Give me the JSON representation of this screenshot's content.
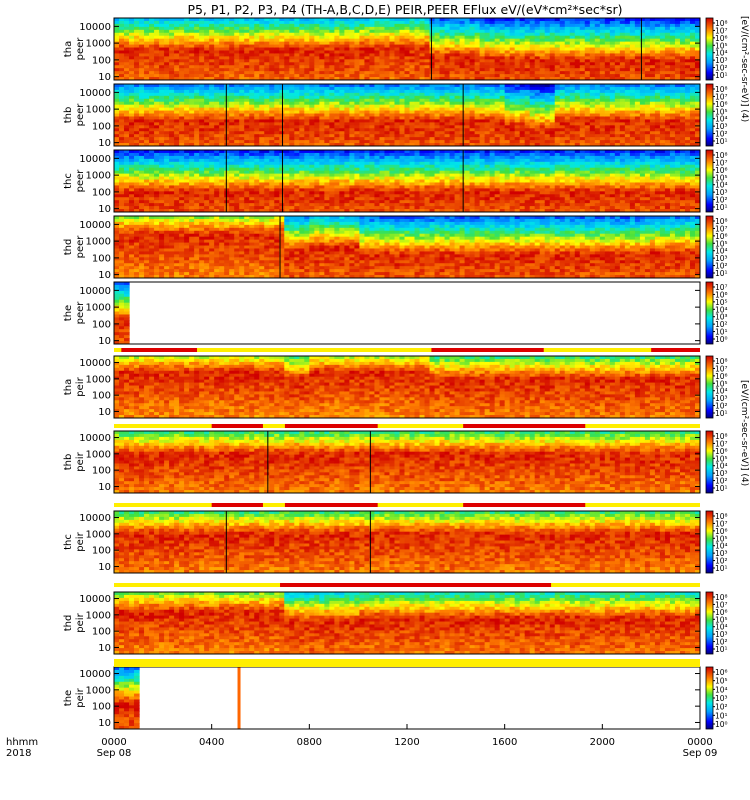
{
  "chart_data": {
    "type": "heatmap",
    "title": "P5, P1, P2, P3, P4 (TH-A,B,C,D,E) PEIR,PEER EFlux eV/(eV*cm²*sec*sr)",
    "colorbar_label_peer": "[eV/(cm²-sec-sr-eV)] (4)",
    "colorbar_label_peir": "[eV/(cm²-sec-sr-eV)] (4)",
    "x_axis": {
      "label_row1": "hhmm",
      "label_row2": "2018",
      "range_hours": [
        0,
        24
      ],
      "ticks": [
        {
          "hour": 0,
          "label": "0000",
          "sub": "Sep 08"
        },
        {
          "hour": 4,
          "label": "0400",
          "sub": ""
        },
        {
          "hour": 8,
          "label": "0800",
          "sub": ""
        },
        {
          "hour": 12,
          "label": "1200",
          "sub": ""
        },
        {
          "hour": 16,
          "label": "1600",
          "sub": ""
        },
        {
          "hour": 20,
          "label": "2000",
          "sub": ""
        },
        {
          "hour": 24,
          "label": "0000",
          "sub": "Sep 09"
        }
      ]
    },
    "y_ticks": [
      "10000",
      "1000",
      "100",
      "10"
    ],
    "panels": [
      {
        "id": "tha-peer",
        "ylabel1": "tha",
        "ylabel2": "peer",
        "ylog": [
          0.8,
          4.5
        ],
        "cb_labels": [
          "10⁸",
          "10⁷",
          "10⁶",
          "10⁵",
          "10⁴",
          "10³",
          "10²",
          "10¹"
        ],
        "profile": [
          2.6,
          2.6,
          2.6,
          2.6,
          2.6,
          2.6,
          2.6,
          2.6,
          2.6,
          2.6,
          2.7,
          2.7,
          2.7,
          2.2,
          2.2,
          2.0,
          2.0,
          2.0,
          2.0,
          2.0,
          2.0,
          2.0,
          2.0,
          2.0
        ],
        "vlines": [
          13.0,
          21.6
        ]
      },
      {
        "id": "thb-peer",
        "ylabel1": "thb",
        "ylabel2": "peer",
        "ylog": [
          0.8,
          4.5
        ],
        "cb_labels": [
          "10⁸",
          "10⁷",
          "10⁶",
          "10⁵",
          "10⁴",
          "10³",
          "10²",
          "10¹"
        ],
        "profile": [
          2.3,
          2.3,
          2.3,
          2.3,
          2.3,
          2.3,
          2.3,
          2.3,
          2.3,
          2.3,
          2.3,
          2.3,
          2.3,
          2.3,
          2.3,
          2.3,
          2.0,
          1.8,
          2.3,
          2.3,
          2.3,
          2.3,
          2.3,
          2.3
        ],
        "vlines": [
          4.6,
          6.9,
          14.3
        ]
      },
      {
        "id": "thc-peer",
        "ylabel1": "thc",
        "ylabel2": "peer",
        "ylog": [
          0.8,
          4.5
        ],
        "cb_labels": [
          "10⁸",
          "10⁷",
          "10⁶",
          "10⁵",
          "10⁴",
          "10³",
          "10²",
          "10¹"
        ],
        "profile": [
          2.0,
          2.0,
          2.0,
          2.0,
          2.0,
          2.0,
          2.0,
          2.0,
          2.0,
          2.0,
          2.0,
          2.0,
          2.0,
          2.0,
          2.0,
          2.0,
          2.0,
          2.0,
          2.0,
          2.0,
          2.0,
          2.0,
          2.0,
          2.0
        ],
        "vlines": [
          4.6,
          6.9,
          14.3
        ]
      },
      {
        "id": "thd-peer",
        "ylabel1": "thd",
        "ylabel2": "peer",
        "ylog": [
          0.8,
          4.5
        ],
        "cb_labels": [
          "10⁸",
          "10⁷",
          "10⁶",
          "10⁵",
          "10⁴",
          "10³",
          "10²",
          "10¹"
        ],
        "profile": [
          3.4,
          3.4,
          3.4,
          3.4,
          3.4,
          3.4,
          3.4,
          2.4,
          2.6,
          2.6,
          2.2,
          2.2,
          2.2,
          2.2,
          2.2,
          2.2,
          2.2,
          2.2,
          2.2,
          2.2,
          2.2,
          2.2,
          2.3,
          2.3
        ],
        "vlines": [
          6.8
        ]
      },
      {
        "id": "the-peer",
        "ylabel1": "the",
        "ylabel2": "peer",
        "ylog": [
          0.8,
          4.5
        ],
        "cb_labels": [
          "10⁷",
          "10⁶",
          "10⁵",
          "10⁴",
          "10³",
          "10²",
          "10¹",
          "10⁰"
        ],
        "data_until_hour": 0.7
      },
      {
        "id": "tha-peir",
        "ylabel1": "tha",
        "ylabel2": "peir",
        "ylog": [
          0.6,
          4.4
        ],
        "cb_labels": [
          "10⁸",
          "10⁷",
          "10⁶",
          "10⁵",
          "10⁴",
          "10³",
          "10²",
          "10¹"
        ],
        "profile": [
          3.4,
          3.4,
          3.4,
          3.4,
          3.4,
          3.4,
          3.4,
          3.0,
          3.4,
          3.4,
          3.4,
          3.4,
          3.4,
          3.0,
          3.0,
          3.0,
          3.0,
          3.0,
          3.0,
          3.0,
          3.0,
          3.0,
          3.0,
          3.0
        ],
        "segments": [
          {
            "h0": 0.3,
            "h1": 3.4,
            "color": "#dd0000"
          },
          {
            "h0": 13.0,
            "h1": 17.6,
            "color": "#dd0000"
          },
          {
            "h0": 22.0,
            "h1": 24.0,
            "color": "#dd0000"
          }
        ]
      },
      {
        "id": "thb-peir",
        "ylabel1": "thb",
        "ylabel2": "peir",
        "ylog": [
          0.6,
          4.4
        ],
        "cb_labels": [
          "10⁸",
          "10⁷",
          "10⁶",
          "10⁵",
          "10⁴",
          "10³",
          "10²",
          "10¹"
        ],
        "profile": [
          3.0,
          3.0,
          3.0,
          3.0,
          3.0,
          3.0,
          3.0,
          3.0,
          3.0,
          3.0,
          3.0,
          3.0,
          3.0,
          3.0,
          3.0,
          3.0,
          3.0,
          3.0,
          3.0,
          3.0,
          3.0,
          3.0,
          3.0,
          3.0
        ],
        "vlines": [
          6.3,
          10.5
        ],
        "segments": [
          {
            "h0": 4.0,
            "h1": 6.1,
            "color": "#dd0000"
          },
          {
            "h0": 7.0,
            "h1": 10.8,
            "color": "#dd0000"
          },
          {
            "h0": 14.3,
            "h1": 19.3,
            "color": "#dd0000"
          }
        ]
      },
      {
        "id": "thc-peir",
        "ylabel1": "thc",
        "ylabel2": "peir",
        "ylog": [
          0.6,
          4.4
        ],
        "cb_labels": [
          "10⁸",
          "10⁷",
          "10⁶",
          "10⁵",
          "10⁴",
          "10³",
          "10²",
          "10¹"
        ],
        "profile": [
          3.0,
          3.0,
          3.0,
          3.0,
          3.0,
          3.0,
          3.0,
          3.0,
          3.0,
          3.0,
          3.0,
          3.0,
          3.0,
          3.0,
          3.0,
          3.0,
          3.0,
          3.0,
          3.0,
          3.0,
          3.0,
          3.0,
          3.0,
          3.0
        ],
        "vlines": [
          4.6,
          10.5
        ],
        "segments": [
          {
            "h0": 4.0,
            "h1": 6.1,
            "color": "#dd0000"
          },
          {
            "h0": 7.0,
            "h1": 10.8,
            "color": "#dd0000"
          },
          {
            "h0": 14.3,
            "h1": 19.3,
            "color": "#dd0000"
          }
        ]
      },
      {
        "id": "thd-peir",
        "ylabel1": "thd",
        "ylabel2": "peir",
        "ylog": [
          0.6,
          4.4
        ],
        "cb_labels": [
          "10⁸",
          "10⁷",
          "10⁶",
          "10⁵",
          "10⁴",
          "10³",
          "10²",
          "10¹"
        ],
        "profile": [
          3.2,
          3.2,
          3.2,
          3.2,
          3.2,
          3.2,
          3.2,
          2.6,
          2.6,
          2.6,
          2.8,
          2.8,
          2.8,
          2.8,
          2.8,
          2.8,
          2.8,
          2.8,
          2.8,
          2.8,
          2.8,
          2.8,
          2.8,
          2.8
        ],
        "segments": [
          {
            "h0": 6.8,
            "h1": 17.9,
            "color": "#dd0000"
          }
        ]
      },
      {
        "id": "the-peir",
        "ylabel1": "the",
        "ylabel2": "peir",
        "ylog": [
          0.6,
          4.4
        ],
        "cb_labels": [
          "10⁶",
          "10⁵",
          "10⁴",
          "10³",
          "10²",
          "10¹",
          "10⁰"
        ],
        "data_until_hour": 1.0,
        "spike_hour": 5.1,
        "segments": [
          {
            "h0": 0.0,
            "h1": 24.0,
            "color": "#ffee00"
          }
        ]
      }
    ]
  }
}
